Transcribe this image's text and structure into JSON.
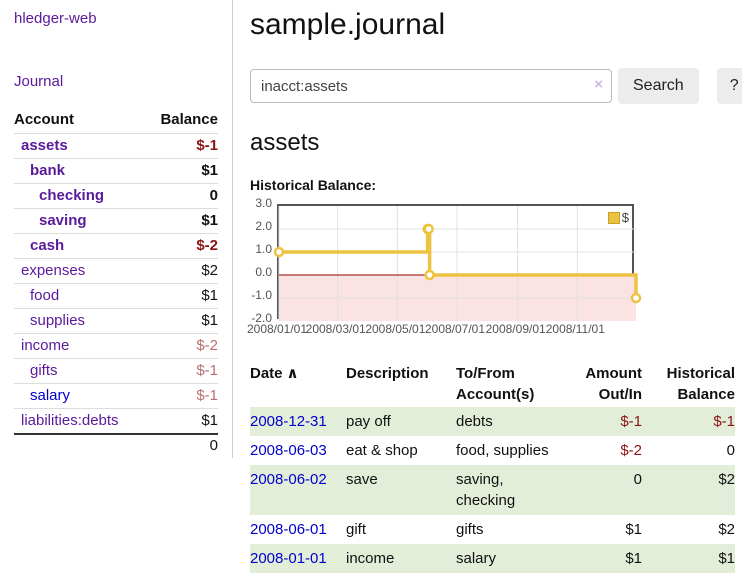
{
  "app": {
    "title": "hledger-web"
  },
  "colors": {
    "link_purple": "#5a1a9a",
    "link_blue": "#0000cc",
    "negative_strong": "#8b1414",
    "negative_soft": "#b96f6f",
    "text_default": "#111111",
    "row_green": "#e3eed9",
    "accent_gold": "#edc240"
  },
  "sidebar": {
    "journal_link": "Journal",
    "accounts_header": {
      "account": "Account",
      "balance": "Balance"
    },
    "accounts": [
      {
        "name": "assets",
        "balance": "$-1",
        "indent": 0,
        "bold": true,
        "name_color": "purple",
        "balance_color": "strong_negative"
      },
      {
        "name": "bank",
        "balance": "$1",
        "indent": 1,
        "bold": true,
        "name_color": "purple",
        "balance_color": "default"
      },
      {
        "name": "checking",
        "balance": "0",
        "indent": 2,
        "bold": true,
        "name_color": "purple",
        "balance_color": "default"
      },
      {
        "name": "saving",
        "balance": "$1",
        "indent": 2,
        "bold": true,
        "name_color": "purple",
        "balance_color": "default"
      },
      {
        "name": "cash",
        "balance": "$-2",
        "indent": 1,
        "bold": true,
        "name_color": "purple",
        "balance_color": "strong_negative"
      },
      {
        "name": "expenses",
        "balance": "$2",
        "indent": 0,
        "bold": false,
        "name_color": "purple",
        "balance_color": "default"
      },
      {
        "name": "food",
        "balance": "$1",
        "indent": 1,
        "bold": false,
        "name_color": "purple",
        "balance_color": "default"
      },
      {
        "name": "supplies",
        "balance": "$1",
        "indent": 1,
        "bold": false,
        "name_color": "purple",
        "balance_color": "default"
      },
      {
        "name": "income",
        "balance": "$-2",
        "indent": 0,
        "bold": false,
        "name_color": "purple",
        "balance_color": "soft_negative"
      },
      {
        "name": "gifts",
        "balance": "$-1",
        "indent": 1,
        "bold": false,
        "name_color": "purple",
        "balance_color": "soft_negative"
      },
      {
        "name": "salary",
        "balance": "$-1",
        "indent": 1,
        "bold": false,
        "name_color": "blue",
        "balance_color": "soft_negative"
      },
      {
        "name": "liabilities:debts",
        "balance": "$1",
        "indent": 0,
        "bold": false,
        "name_color": "purple",
        "balance_color": "default"
      }
    ],
    "total": "0"
  },
  "header": {
    "title": "sample.journal"
  },
  "search": {
    "value": "inacct:assets",
    "clear_icon": "×",
    "search_label": "Search",
    "help_label": "?"
  },
  "main": {
    "account_title": "assets"
  },
  "chart_data": {
    "type": "line",
    "title": "Historical Balance:",
    "style": "step",
    "series": [
      {
        "name": "$",
        "color": "#edc240",
        "points": [
          {
            "date": "2008-01-01",
            "value": 1
          },
          {
            "date": "2008-06-01",
            "value": 2
          },
          {
            "date": "2008-06-02",
            "value": 2
          },
          {
            "date": "2008-06-03",
            "value": 0
          },
          {
            "date": "2008-12-31",
            "value": -1
          }
        ]
      }
    ],
    "xlim": [
      "2008-01-01",
      "2008-12-31"
    ],
    "ylim": [
      -2,
      3
    ],
    "y_ticks": [
      3,
      2,
      1,
      0,
      -1,
      -2
    ],
    "x_ticks": [
      "2008/01/01",
      "2008/03/01",
      "2008/05/01",
      "2008/07/01",
      "2008/09/01",
      "2008/11/01"
    ],
    "grid": true,
    "grid_color": "#e0e0e0",
    "zero_line_color": "#8b0000",
    "negative_region_color": "#fce3e3",
    "legend": {
      "label": "$",
      "position": "top-right"
    }
  },
  "register": {
    "headers": [
      {
        "label": "Date",
        "sort_icon": "∧",
        "align": "left",
        "sortable": true
      },
      {
        "label": "Description",
        "align": "left",
        "sortable": false
      },
      {
        "label": "To/From Account(s)",
        "align": "left",
        "sortable": false
      },
      {
        "label": "Amount Out/In",
        "align": "right",
        "sortable": false
      },
      {
        "label": "Historical Balance",
        "align": "right",
        "sortable": false
      }
    ],
    "rows": [
      {
        "date": "2008-12-31",
        "description": "pay off",
        "accounts": "debts",
        "amount": "$-1",
        "amount_color": "strong_negative",
        "balance": "$-1",
        "balance_color": "strong_negative"
      },
      {
        "date": "2008-06-03",
        "description": "eat & shop",
        "accounts": "food, supplies",
        "amount": "$-2",
        "amount_color": "strong_negative",
        "balance": "0",
        "balance_color": "default"
      },
      {
        "date": "2008-06-02",
        "description": "save",
        "accounts": "saving, checking",
        "amount": "0",
        "amount_color": "default",
        "balance": "$2",
        "balance_color": "default"
      },
      {
        "date": "2008-06-01",
        "description": "gift",
        "accounts": "gifts",
        "amount": "$1",
        "amount_color": "default",
        "balance": "$2",
        "balance_color": "default"
      },
      {
        "date": "2008-01-01",
        "description": "income",
        "accounts": "salary",
        "amount": "$1",
        "amount_color": "default",
        "balance": "$1",
        "balance_color": "default"
      }
    ]
  }
}
